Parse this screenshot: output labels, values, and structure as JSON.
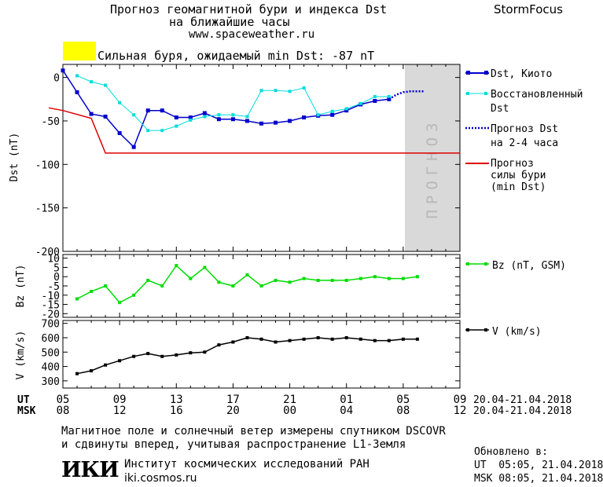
{
  "header": {
    "title_line1": "Прогноз геомагнитной бури и индекса Dst",
    "title_line2": "на ближайшие часы",
    "site": "www.spaceweather.ru",
    "brand": "StormFocus"
  },
  "storm_banner": {
    "text": "Сильная буря, ожидаемый min Dst: -87 nT",
    "swatch_color": "#ffff00"
  },
  "forecast_band_label": "ПРОГНОЗ",
  "chart_data": [
    {
      "type": "line",
      "title": "",
      "ylabel": "Dst (nT)",
      "ylim": [
        -200,
        15
      ],
      "y_ticks": [
        "0",
        "-50",
        "-100",
        "-150",
        "-200"
      ],
      "x_hours": [
        5,
        9,
        13,
        17,
        21,
        1,
        5,
        9
      ],
      "series": [
        {
          "name": "Dst, Киото",
          "color": "#0000cc",
          "style": "line-square",
          "x": [
            5,
            6,
            7,
            8,
            9,
            10,
            11,
            12,
            13,
            14,
            15,
            16,
            17,
            18,
            19,
            20,
            21,
            22,
            23,
            24,
            25,
            26,
            27,
            28
          ],
          "y": [
            8,
            -17,
            -42,
            -45,
            -64,
            -80,
            -38,
            -38,
            -46,
            -46,
            -41,
            -48,
            -48,
            -50,
            -53,
            -52,
            -50,
            -46,
            -44,
            -43,
            -38,
            -31,
            -27,
            -25
          ]
        },
        {
          "name": "Восстановленный Dst",
          "color": "#00dddd",
          "style": "line-square",
          "x": [
            6,
            7,
            8,
            9,
            10,
            11,
            12,
            13,
            14,
            15,
            16,
            17,
            18,
            19,
            20,
            21,
            22,
            23,
            24,
            25,
            26,
            27,
            28
          ],
          "y": [
            2,
            -5,
            -9,
            -29,
            -43,
            -61,
            -61,
            -56,
            -49,
            -45,
            -43,
            -43,
            -45,
            -15,
            -15,
            -16,
            -12,
            -43,
            -39,
            -36,
            -30,
            -22,
            -22
          ]
        },
        {
          "name": "Прогноз Dst на 2-4 часа",
          "color": "#0000cc",
          "style": "dotted",
          "x": [
            28,
            28.5,
            29,
            29.5,
            30,
            30.5
          ],
          "y": [
            -25,
            -20,
            -17,
            -16,
            -16,
            -16
          ]
        },
        {
          "name": "Прогноз силы бури (min Dst)",
          "color": "#dd0000",
          "style": "line",
          "x": [
            4,
            5,
            7,
            8,
            33
          ],
          "y": [
            -35,
            -38,
            -47,
            -87,
            -87
          ]
        }
      ],
      "legend": [
        "Dst, Киото",
        "Восстановленный Dst",
        "Прогноз Dst на 2-4 часа",
        "Прогноз силы бури (min Dst)"
      ]
    },
    {
      "type": "line",
      "ylabel": "Bz (nT)",
      "ylim": [
        -22,
        12
      ],
      "y_ticks": [
        "10",
        "5",
        "0",
        "-5",
        "-10",
        "-15",
        "-20"
      ],
      "series": [
        {
          "name": "Bz (nT, GSM)",
          "color": "#00dd00",
          "x": [
            6,
            7,
            8,
            9,
            10,
            11,
            12,
            13,
            14,
            15,
            16,
            17,
            18,
            19,
            20,
            21,
            22,
            23,
            24,
            25,
            26,
            27,
            28,
            29,
            30
          ],
          "y": [
            -12,
            -8,
            -5,
            -14,
            -10,
            -2,
            -5,
            6,
            -1,
            5,
            -3,
            -5,
            1,
            -5,
            -2,
            -3,
            -1,
            -2,
            -2,
            -2,
            -1,
            0,
            -1,
            -1,
            0
          ]
        }
      ]
    },
    {
      "type": "line",
      "ylabel": "V (km/s)",
      "ylim": [
        250,
        720
      ],
      "y_ticks": [
        "700",
        "600",
        "500",
        "400",
        "300"
      ],
      "series": [
        {
          "name": "V (km/s)",
          "color": "#000000",
          "x": [
            6,
            7,
            8,
            9,
            10,
            11,
            12,
            13,
            14,
            15,
            16,
            17,
            18,
            19,
            20,
            21,
            22,
            23,
            24,
            25,
            26,
            27,
            28,
            29,
            30
          ],
          "y": [
            350,
            370,
            410,
            440,
            470,
            490,
            470,
            480,
            495,
            500,
            550,
            570,
            600,
            590,
            570,
            580,
            590,
            600,
            590,
            600,
            590,
            580,
            580,
            590,
            590
          ]
        }
      ]
    }
  ],
  "x_axis": {
    "ut_label": "UT",
    "msk_label": "MSK",
    "ut_ticks": [
      "05",
      "09",
      "13",
      "17",
      "21",
      "01",
      "05",
      "09"
    ],
    "msk_ticks": [
      "08",
      "12",
      "16",
      "20",
      "00",
      "04",
      "08",
      "12"
    ],
    "ut_range": "20.04-21.04.2018",
    "msk_range": "20.04-21.04.2018"
  },
  "footer": {
    "note_line1": "Магнитное поле и солнечный ветер измерены спутником DSCOVR",
    "note_line2": "и сдвинуты вперед, учитывая распространение L1-Земля",
    "logo": "ИКИ",
    "institute": "Институт космических исследований РАН",
    "institute_site": "iki.cosmos.ru",
    "updated_label": "Обновлено в:",
    "updated_ut": "UT  05:05, 21.04.2018",
    "updated_msk": "MSK 08:05, 21.04.2018"
  },
  "legend_labels": {
    "dst": "Dst, Киото",
    "recon_1": "Восстановленный",
    "recon_2": "Dst",
    "fc_1": "Прогноз Dst",
    "fc_2": "на 2-4 часа",
    "storm_1": "Прогноз",
    "storm_2": "силы бури",
    "storm_3": "(min Dst)",
    "bz": "Bz (nT, GSM)",
    "v": "V (km/s)"
  }
}
